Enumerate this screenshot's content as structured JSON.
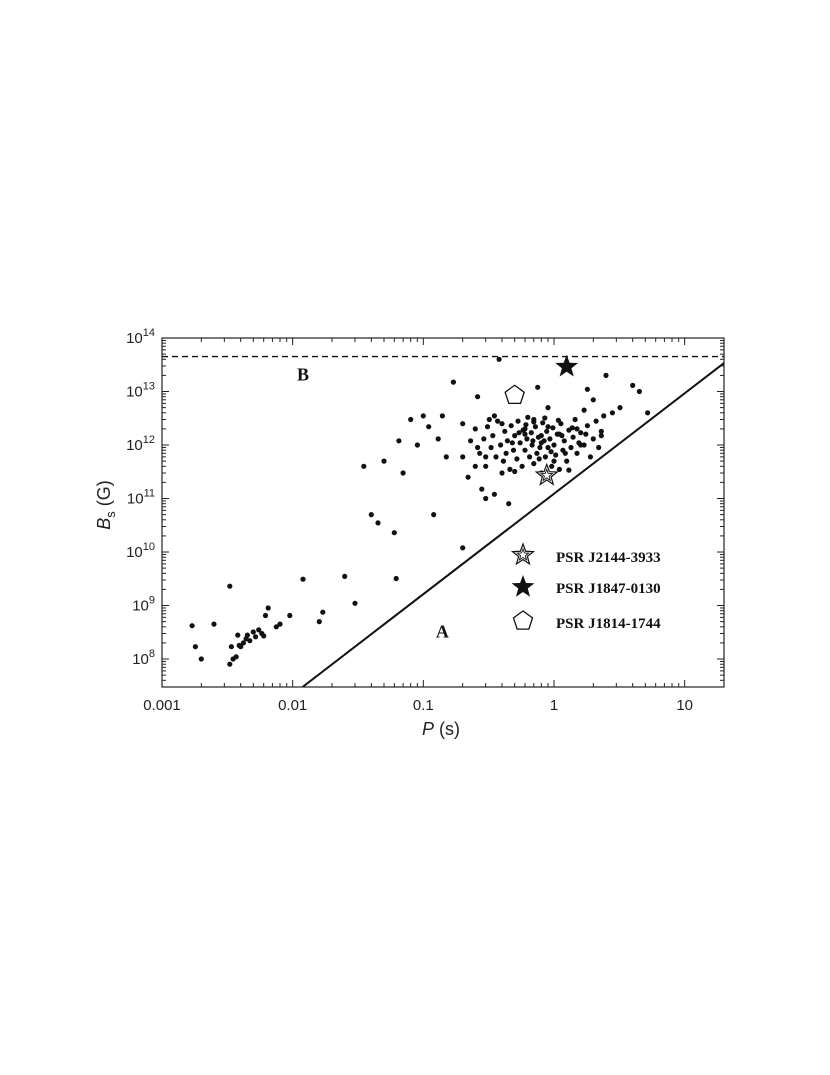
{
  "chart_data": {
    "type": "scatter",
    "xlabel_symbol": "P",
    "xlabel_unit": "(s)",
    "ylabel_symbol": "B",
    "ylabel_sub": "s",
    "ylabel_unit": "(G)",
    "x_scale": "log",
    "y_scale": "log",
    "xlim": [
      0.001,
      20
    ],
    "ylim": [
      30000000.0,
      100000000000000.0
    ],
    "x_ticks": [
      {
        "value": 0.001,
        "label": "0.001"
      },
      {
        "value": 0.01,
        "label": "0.01"
      },
      {
        "value": 0.1,
        "label": "0.1"
      },
      {
        "value": 1,
        "label": "1"
      },
      {
        "value": 10,
        "label": "10"
      }
    ],
    "y_ticks": [
      {
        "value": 100000000.0,
        "exp": "8"
      },
      {
        "value": 1000000000.0,
        "exp": "9"
      },
      {
        "value": 10000000000.0,
        "exp": "10"
      },
      {
        "value": 100000000000.0,
        "exp": "11"
      },
      {
        "value": 1000000000000.0,
        "exp": "12"
      },
      {
        "value": 10000000000000.0,
        "exp": "13"
      },
      {
        "value": 100000000000000.0,
        "exp": "14"
      }
    ],
    "y_tick_base": "10",
    "grid": false,
    "lines": [
      {
        "label": "A",
        "style": "solid",
        "points": [
          [
            0.0119,
            30000000.0
          ],
          [
            20,
            34000000000000.0
          ]
        ]
      },
      {
        "label": "B",
        "style": "dashed",
        "y": 45000000000000.0
      }
    ],
    "region_labels": [
      {
        "text": "B",
        "x": 0.012,
        "y": 21000000000000.0
      },
      {
        "text": "A",
        "x": 0.14,
        "y": 330000000.0
      }
    ],
    "highlighted": [
      {
        "name": "PSR J2144-3933",
        "marker": "open-star",
        "x": 0.88,
        "y": 270000000000.0
      },
      {
        "name": "PSR J1847-0130",
        "marker": "filled-star",
        "x": 1.25,
        "y": 29000000000000.0
      },
      {
        "name": "PSR J1814-1744",
        "marker": "open-pentagon",
        "x": 0.5,
        "y": 8500000000000.0
      }
    ],
    "legend_position": "lower-right",
    "series": [
      {
        "values": [
          [
            0.0017,
            420000000.0
          ],
          [
            0.0018,
            170000000.0
          ],
          [
            0.002,
            100000000.0
          ],
          [
            0.0025,
            450000000.0
          ],
          [
            0.0033,
            2300000000.0
          ],
          [
            0.0033,
            80000000.0
          ],
          [
            0.0034,
            170000000.0
          ],
          [
            0.0035,
            100000000.0
          ],
          [
            0.0037,
            110000000.0
          ],
          [
            0.0038,
            280000000.0
          ],
          [
            0.0039,
            180000000.0
          ],
          [
            0.004,
            170000000.0
          ],
          [
            0.0042,
            200000000.0
          ],
          [
            0.0044,
            240000000.0
          ],
          [
            0.0045,
            280000000.0
          ],
          [
            0.0047,
            220000000.0
          ],
          [
            0.005,
            320000000.0
          ],
          [
            0.0052,
            260000000.0
          ],
          [
            0.0055,
            350000000.0
          ],
          [
            0.0058,
            300000000.0
          ],
          [
            0.006,
            270000000.0
          ],
          [
            0.0062,
            650000000.0
          ],
          [
            0.0065,
            900000000.0
          ],
          [
            0.0075,
            400000000.0
          ],
          [
            0.008,
            450000000.0
          ],
          [
            0.0095,
            650000000.0
          ],
          [
            0.012,
            3100000000.0
          ],
          [
            0.016,
            500000000.0
          ],
          [
            0.017,
            750000000.0
          ],
          [
            0.025,
            3500000000.0
          ],
          [
            0.03,
            1100000000.0
          ],
          [
            0.035,
            400000000000.0
          ],
          [
            0.04,
            50000000000.0
          ],
          [
            0.045,
            35000000000.0
          ],
          [
            0.05,
            500000000000.0
          ],
          [
            0.06,
            23000000000.0
          ],
          [
            0.062,
            3200000000.0
          ],
          [
            0.065,
            1200000000000.0
          ],
          [
            0.07,
            300000000000.0
          ],
          [
            0.08,
            3000000000000.0
          ],
          [
            0.09,
            1000000000000.0
          ],
          [
            0.1,
            3500000000000.0
          ],
          [
            0.11,
            2200000000000.0
          ],
          [
            0.12,
            50000000000.0
          ],
          [
            0.13,
            1300000000000.0
          ],
          [
            0.14,
            3500000000000.0
          ],
          [
            0.15,
            600000000000.0
          ],
          [
            0.17,
            15000000000000.0
          ],
          [
            0.2,
            12000000000.0
          ],
          [
            0.2,
            600000000000.0
          ],
          [
            0.22,
            250000000000.0
          ],
          [
            0.25,
            400000000000.0
          ],
          [
            0.26,
            8000000000000.0
          ],
          [
            0.28,
            150000000000.0
          ],
          [
            0.3,
            100000000000.0
          ],
          [
            0.32,
            3000000000000.0
          ],
          [
            0.35,
            120000000000.0
          ],
          [
            0.38,
            40000000000000.0
          ],
          [
            0.4,
            300000000000.0
          ],
          [
            0.45,
            80000000000.0
          ],
          [
            0.55,
            10000000000000.0
          ],
          [
            0.6,
            2000000000000.0
          ],
          [
            0.7,
            3000000000000.0
          ],
          [
            0.75,
            12000000000000.0
          ],
          [
            0.8,
            1500000000000.0
          ],
          [
            0.9,
            5000000000000.0
          ],
          [
            1.1,
            1600000000000.0
          ],
          [
            1.5,
            2000000000000.0
          ],
          [
            1.6,
            1000000000000.0
          ],
          [
            1.7,
            4500000000000.0
          ],
          [
            1.8,
            11000000000000.0
          ],
          [
            2.0,
            7000000000000.0
          ],
          [
            2.3,
            1500000000000.0
          ],
          [
            2.5,
            20000000000000.0
          ],
          [
            2.8,
            4000000000000.0
          ],
          [
            3.2,
            5000000000000.0
          ],
          [
            4.0,
            13000000000000.0
          ],
          [
            4.5,
            10000000000000.0
          ],
          [
            5.2,
            4000000000000.0
          ],
          [
            0.2,
            2500000000000.0
          ],
          [
            0.23,
            1200000000000.0
          ],
          [
            0.25,
            2000000000000.0
          ],
          [
            0.27,
            700000000000.0
          ],
          [
            0.29,
            1300000000000.0
          ],
          [
            0.3,
            400000000000.0
          ],
          [
            0.31,
            2200000000000.0
          ],
          [
            0.33,
            900000000000.0
          ],
          [
            0.34,
            1500000000000.0
          ],
          [
            0.36,
            600000000000.0
          ],
          [
            0.37,
            2800000000000.0
          ],
          [
            0.39,
            1000000000000.0
          ],
          [
            0.41,
            500000000000.0
          ],
          [
            0.42,
            1800000000000.0
          ],
          [
            0.44,
            1200000000000.0
          ],
          [
            0.46,
            350000000000.0
          ],
          [
            0.47,
            2300000000000.0
          ],
          [
            0.49,
            800000000000.0
          ],
          [
            0.5,
            1500000000000.0
          ],
          [
            0.52,
            550000000000.0
          ],
          [
            0.53,
            2800000000000.0
          ],
          [
            0.55,
            1100000000000.0
          ],
          [
            0.57,
            400000000000.0
          ],
          [
            0.58,
            1900000000000.0
          ],
          [
            0.6,
            800000000000.0
          ],
          [
            0.62,
            1300000000000.0
          ],
          [
            0.63,
            3300000000000.0
          ],
          [
            0.65,
            600000000000.0
          ],
          [
            0.67,
            1700000000000.0
          ],
          [
            0.68,
            1000000000000.0
          ],
          [
            0.7,
            450000000000.0
          ],
          [
            0.72,
            2200000000000.0
          ],
          [
            0.74,
            700000000000.0
          ],
          [
            0.76,
            1400000000000.0
          ],
          [
            0.78,
            900000000000.0
          ],
          [
            0.8,
            300000000000.0
          ],
          [
            0.82,
            2600000000000.0
          ],
          [
            0.84,
            1200000000000.0
          ],
          [
            0.86,
            600000000000.0
          ],
          [
            0.88,
            1800000000000.0
          ],
          [
            0.9,
            900000000000.0
          ],
          [
            0.93,
            1300000000000.0
          ],
          [
            0.96,
            400000000000.0
          ],
          [
            0.98,
            2100000000000.0
          ],
          [
            1.0,
            1000000000000.0
          ],
          [
            1.03,
            650000000000.0
          ],
          [
            1.06,
            1600000000000.0
          ],
          [
            1.1,
            350000000000.0
          ],
          [
            1.13,
            2500000000000.0
          ],
          [
            1.17,
            800000000000.0
          ],
          [
            1.2,
            1200000000000.0
          ],
          [
            1.25,
            500000000000.0
          ],
          [
            1.3,
            1900000000000.0
          ],
          [
            1.35,
            900000000000.0
          ],
          [
            1.4,
            1400000000000.0
          ],
          [
            1.45,
            3000000000000.0
          ],
          [
            1.5,
            700000000000.0
          ],
          [
            1.6,
            1700000000000.0
          ],
          [
            1.7,
            1000000000000.0
          ],
          [
            1.8,
            2300000000000.0
          ],
          [
            1.9,
            600000000000.0
          ],
          [
            2.0,
            1300000000000.0
          ],
          [
            2.1,
            2800000000000.0
          ],
          [
            2.2,
            900000000000.0
          ],
          [
            2.3,
            1800000000000.0
          ],
          [
            2.4,
            3500000000000.0
          ],
          [
            0.26,
            900000000000.0
          ],
          [
            0.35,
            3500000000000.0
          ],
          [
            0.43,
            700000000000.0
          ],
          [
            0.48,
            1100000000000.0
          ],
          [
            0.54,
            1700000000000.0
          ],
          [
            0.61,
            2400000000000.0
          ],
          [
            0.69,
            1200000000000.0
          ],
          [
            0.77,
            550000000000.0
          ],
          [
            0.85,
            3200000000000.0
          ],
          [
            0.95,
            750000000000.0
          ],
          [
            1.08,
            2900000000000.0
          ],
          [
            1.22,
            700000000000.0
          ],
          [
            1.38,
            2100000000000.0
          ],
          [
            1.55,
            1100000000000.0
          ],
          [
            1.75,
            1600000000000.0
          ],
          [
            0.3,
            600000000000.0
          ],
          [
            0.4,
            2500000000000.0
          ],
          [
            0.5,
            320000000000.0
          ],
          [
            0.6,
            1600000000000.0
          ],
          [
            0.7,
            2700000000000.0
          ],
          [
            0.8,
            1100000000000.0
          ],
          [
            0.9,
            2200000000000.0
          ],
          [
            1.0,
            500000000000.0
          ],
          [
            1.15,
            1500000000000.0
          ],
          [
            1.3,
            340000000000.0
          ]
        ]
      }
    ]
  },
  "legend": {
    "items": [
      {
        "label": "PSR J2144-3933",
        "marker": "open-star"
      },
      {
        "label": "PSR J1847-0130",
        "marker": "filled-star"
      },
      {
        "label": "PSR J1814-1744",
        "marker": "open-pentagon"
      }
    ]
  },
  "colors": {
    "marker": "#111111",
    "axis": "#222222",
    "line": "#111111"
  }
}
